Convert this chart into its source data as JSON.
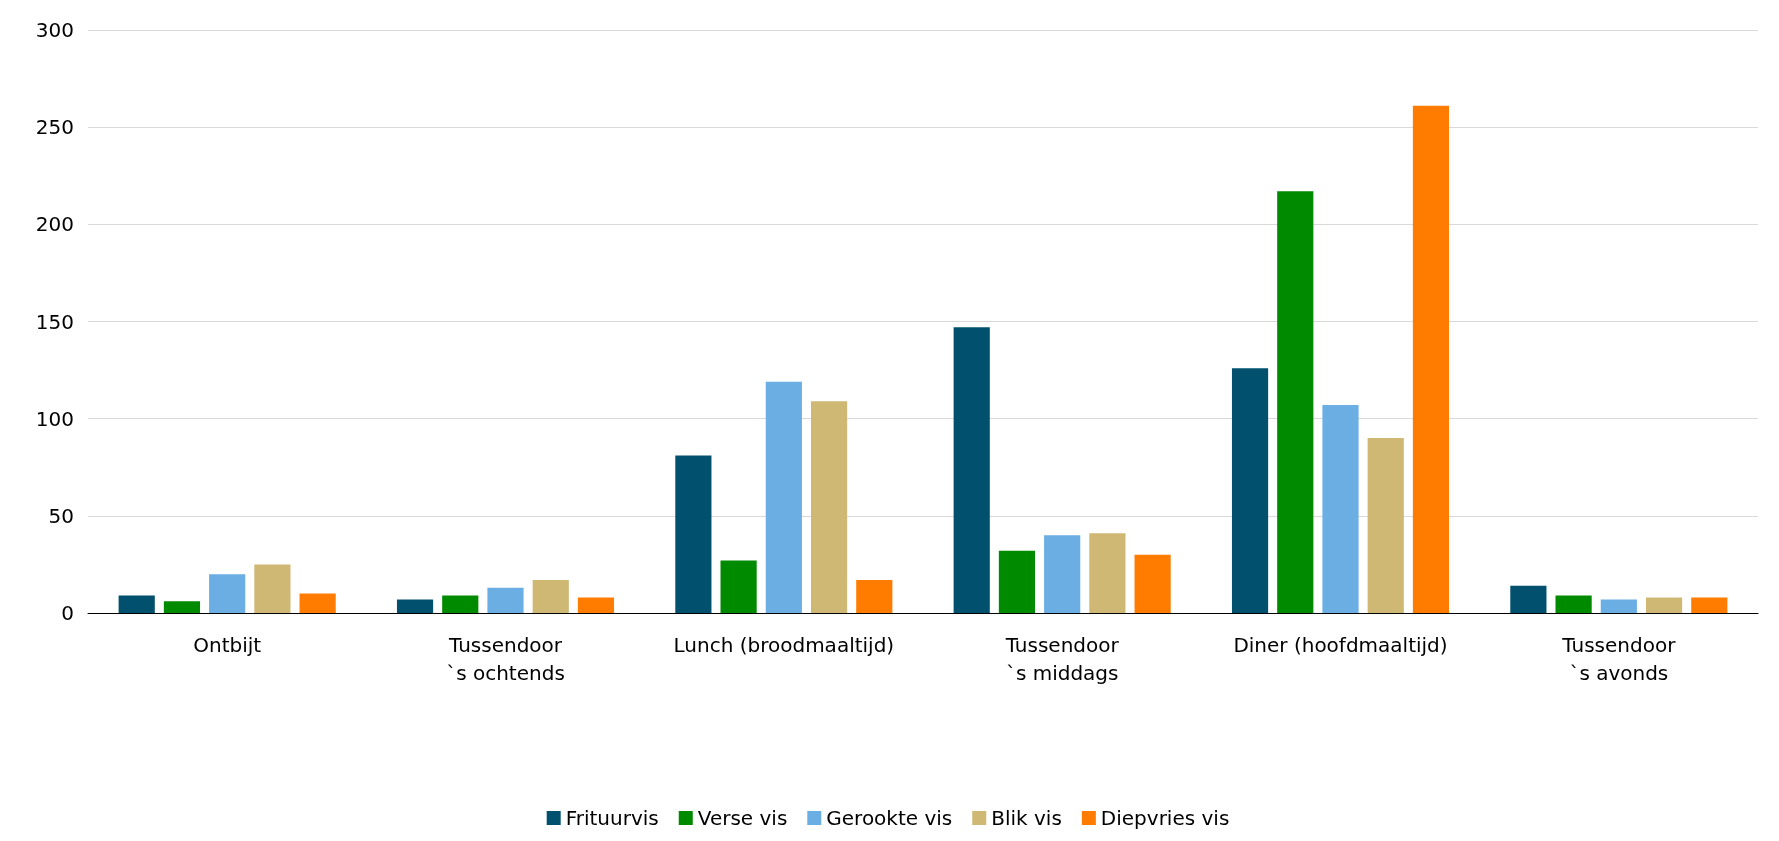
{
  "chart_data": {
    "type": "bar",
    "categories": [
      "Ontbijt",
      "Tussendoor\n`s ochtends",
      "Lunch (broodmaaltijd)",
      "Tussendoor\n`s middags",
      "Diner (hoofdmaaltijd)",
      "Tussendoor\n`s avonds"
    ],
    "series": [
      {
        "name": "Frituurvis",
        "color": "#00506e",
        "values": [
          9,
          7,
          81,
          147,
          126,
          14
        ]
      },
      {
        "name": "Verse vis",
        "color": "#008a00",
        "values": [
          6,
          9,
          27,
          32,
          217,
          9
        ]
      },
      {
        "name": "Gerookte vis",
        "color": "#6aaee4",
        "values": [
          20,
          13,
          119,
          40,
          107,
          7
        ]
      },
      {
        "name": "Blik vis",
        "color": "#cfb873",
        "values": [
          25,
          17,
          109,
          41,
          90,
          8
        ]
      },
      {
        "name": "Diepvries vis",
        "color": "#ff7c00",
        "values": [
          10,
          8,
          17,
          30,
          261,
          8
        ]
      }
    ],
    "ylim": [
      0,
      300
    ],
    "yticks": [
      0,
      50,
      100,
      150,
      200,
      250,
      300
    ],
    "grid": "y",
    "legend": "bottom"
  }
}
